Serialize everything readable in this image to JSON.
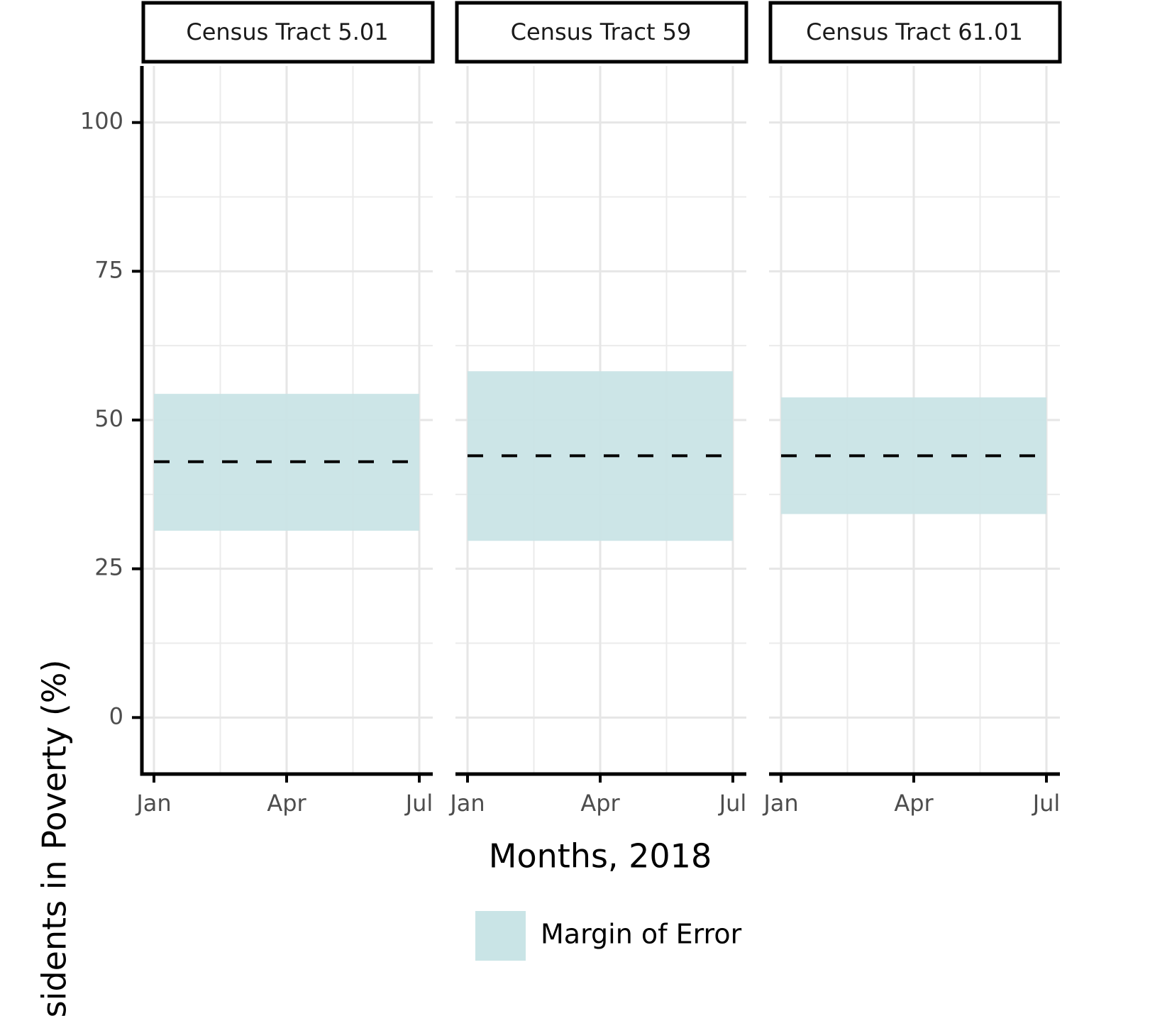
{
  "chart_data": {
    "type": "band",
    "x_label": "Months, 2018",
    "y_label": "Residents in Poverty (%)",
    "categories": [
      "Jan",
      "Apr",
      "Jul"
    ],
    "ylim": [
      -9.5,
      109.5
    ],
    "yticks": [
      0,
      25,
      50,
      75,
      100
    ],
    "grid": true,
    "legend": {
      "label": "Margin of Error",
      "color": "#c9e4e6"
    },
    "panels": [
      {
        "title": "Census Tract 5.01",
        "estimate": 43.0,
        "moe_lower": 31.4,
        "moe_upper": 54.4
      },
      {
        "title": "Census Tract 59",
        "estimate": 44.0,
        "moe_lower": 29.7,
        "moe_upper": 58.2
      },
      {
        "title": "Census Tract 61.01",
        "estimate": 44.0,
        "moe_lower": 34.2,
        "moe_upper": 53.8
      }
    ]
  }
}
